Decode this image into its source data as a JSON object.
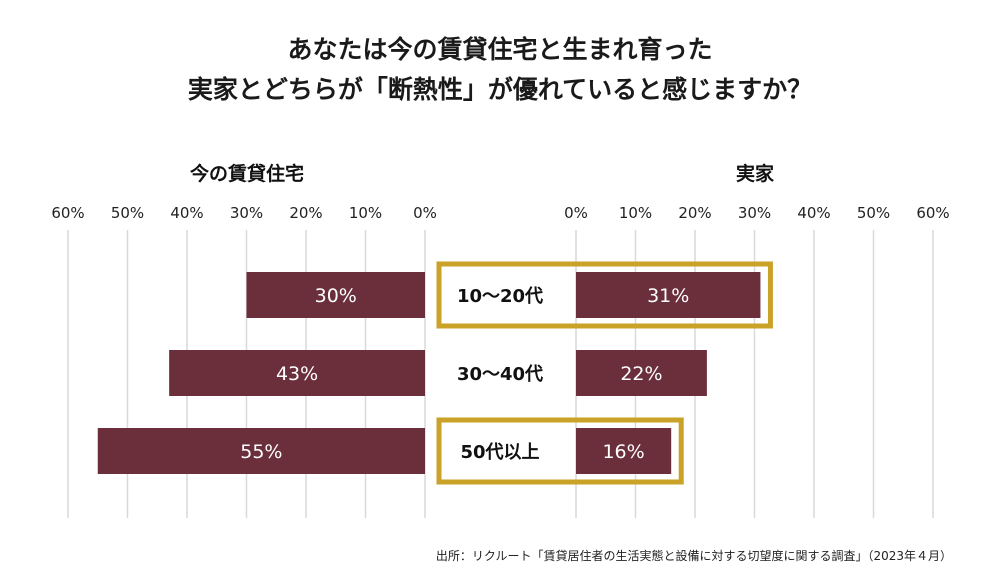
{
  "title_lines": [
    "あなたは今の賃貸住宅と生まれ育った",
    "実家とどちらが「断熱性」が優れていると感じますか？"
  ],
  "source": "出所：リクルート「賃貸居住者の生活実態と設備に対する切望度に関する調査」（2023年４月）",
  "colors": {
    "bar": "#6b2f3c",
    "highlight": "#c9a227",
    "grid": "#d9d9d9",
    "bar_text": "#ffffff"
  },
  "chart_data": {
    "type": "bar",
    "title": "あなたは今の賃貸住宅と生まれ育った実家とどちらが「断熱性」が優れていると感じますか？",
    "categories": [
      "10～20代",
      "30～40代",
      "50代以上"
    ],
    "highlighted_categories": [
      "10～20代",
      "50代以上"
    ],
    "series": [
      {
        "name": "今の賃貸住宅",
        "values": [
          30,
          43,
          55
        ],
        "labels": [
          "30%",
          "43%",
          "55%"
        ],
        "side": "left"
      },
      {
        "name": "実家",
        "values": [
          31,
          22,
          16
        ],
        "labels": [
          "31%",
          "22%",
          "16%"
        ],
        "side": "right"
      }
    ],
    "xlim": [
      0,
      60
    ],
    "ticks": [
      60,
      50,
      40,
      30,
      20,
      10,
      0
    ],
    "tick_labels_left": [
      "60%",
      "50%",
      "40%",
      "30%",
      "20%",
      "10%",
      "0%"
    ],
    "tick_labels_right": [
      "0%",
      "10%",
      "20%",
      "30%",
      "40%",
      "50%",
      "60%"
    ],
    "grid": true
  }
}
